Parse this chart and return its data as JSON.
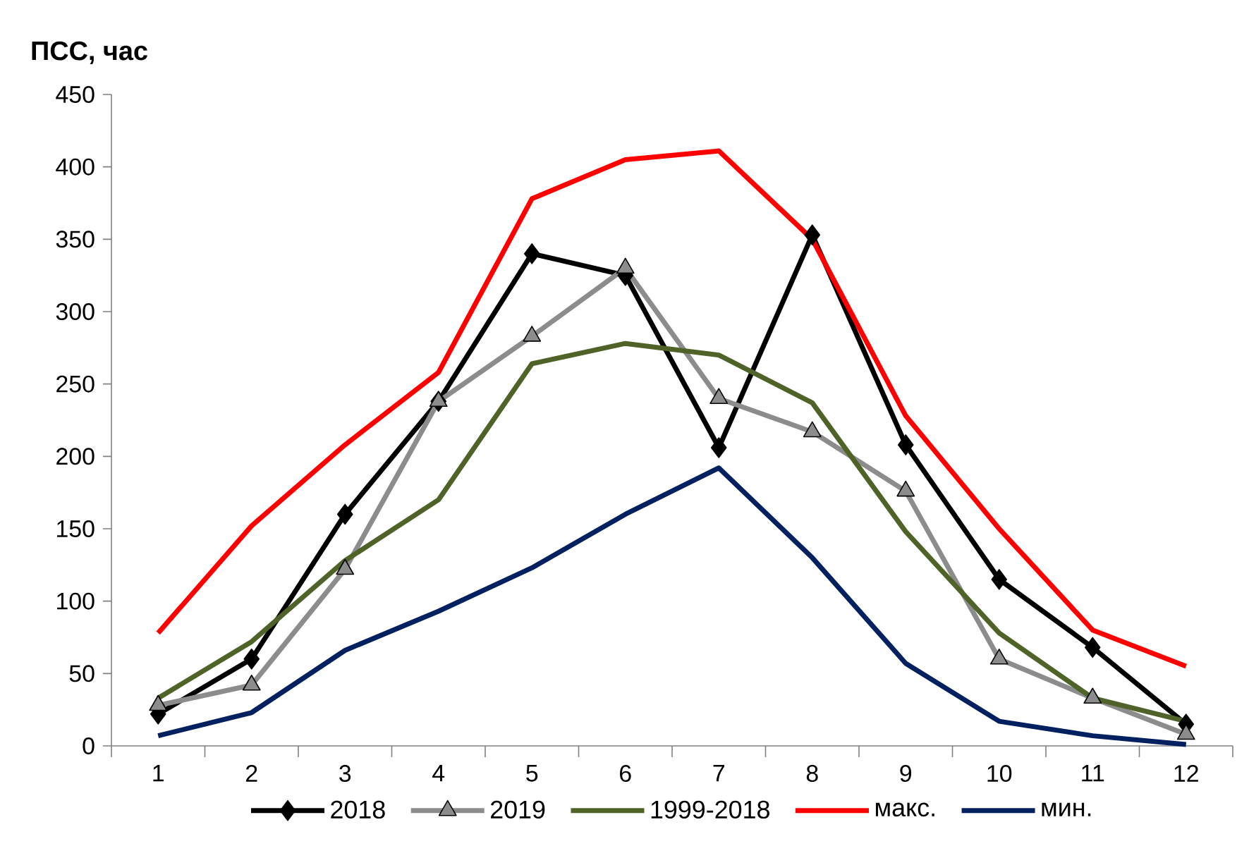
{
  "chart_data": {
    "type": "line",
    "ylabel": "ПСС, час",
    "categories": [
      "1",
      "2",
      "3",
      "4",
      "5",
      "6",
      "7",
      "8",
      "9",
      "10",
      "11",
      "12"
    ],
    "series": [
      {
        "name": "2018",
        "color": "#000000",
        "marker": "diamond",
        "values": [
          22,
          60,
          160,
          238,
          340,
          325,
          206,
          353,
          208,
          115,
          68,
          15
        ]
      },
      {
        "name": "2019",
        "color": "#8c8c8c",
        "marker": "triangle",
        "values": [
          28,
          42,
          122,
          238,
          283,
          330,
          240,
          217,
          176,
          60,
          33,
          8
        ]
      },
      {
        "name": "1999-2018",
        "color": "#4f6228",
        "marker": "none",
        "values": [
          33,
          72,
          128,
          170,
          264,
          278,
          270,
          237,
          148,
          78,
          33,
          17
        ]
      },
      {
        "name": "макс.",
        "color": "#ff0000",
        "marker": "none",
        "values": [
          78,
          152,
          208,
          258,
          378,
          405,
          411,
          350,
          228,
          150,
          80,
          55
        ]
      },
      {
        "name": "мин.",
        "color": "#002060",
        "marker": "none",
        "values": [
          7,
          23,
          66,
          93,
          123,
          160,
          192,
          130,
          57,
          17,
          7,
          1
        ]
      }
    ],
    "ylim": [
      0,
      450
    ],
    "yticks": [
      0,
      50,
      100,
      150,
      200,
      250,
      300,
      350,
      400,
      450
    ],
    "grid": false,
    "legend": "bottom",
    "line_style": "solid"
  }
}
